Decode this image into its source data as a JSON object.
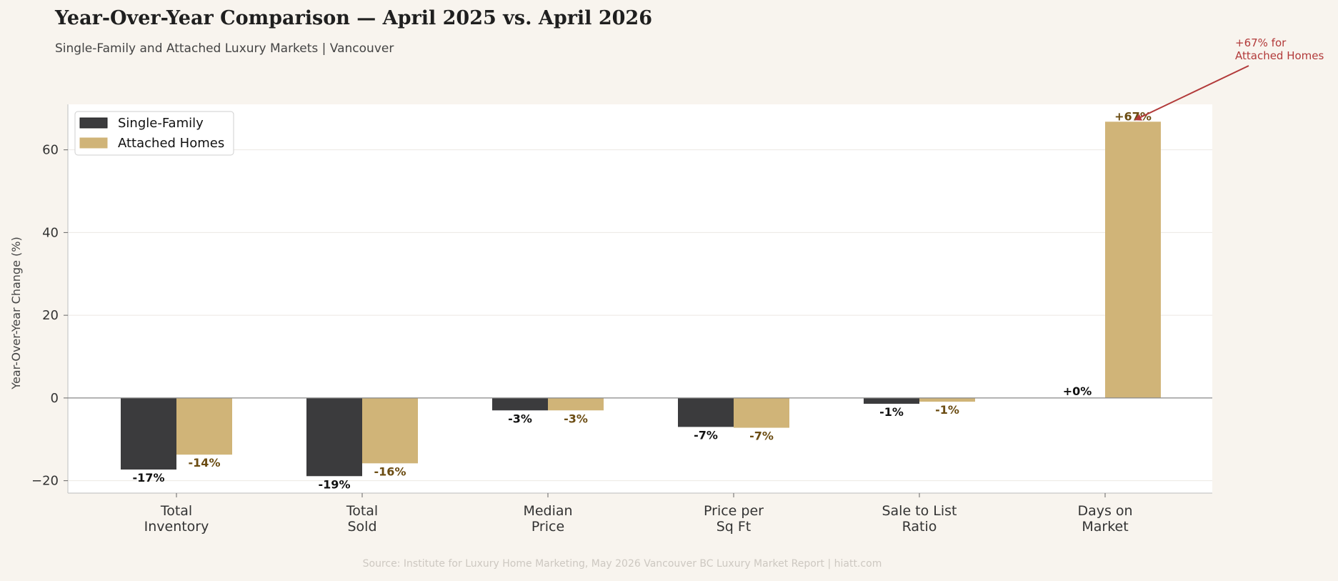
{
  "chart_data": {
    "type": "bar",
    "title": "Year-Over-Year Comparison — April 2025 vs. April 2026",
    "subtitle": "Single-Family and Attached Luxury Markets  |  Vancouver",
    "ylabel": "Year-Over-Year Change (%)",
    "xlabel": "",
    "ylim": [
      -23,
      71
    ],
    "yticks": [
      -20,
      0,
      20,
      40,
      60
    ],
    "ytick_labels": [
      "−20",
      "0",
      "20",
      "40",
      "60"
    ],
    "grid": true,
    "legend_position": "top-left",
    "categories": [
      [
        "Total",
        "Inventory"
      ],
      [
        "Total",
        "Sold"
      ],
      [
        "Median",
        "Price"
      ],
      [
        "Price per",
        "Sq Ft"
      ],
      [
        "Sale to List",
        "Ratio"
      ],
      [
        "Days on",
        "Market"
      ]
    ],
    "series": [
      {
        "name": "Single-Family",
        "color": "#3b3b3d",
        "label_color": "#111111",
        "values": [
          -17.3,
          -18.9,
          -3.0,
          -7.0,
          -1.4,
          0
        ],
        "labels": [
          "-17%",
          "-19%",
          "-3%",
          "-7%",
          "-1%",
          "+0%"
        ]
      },
      {
        "name": "Attached Homes",
        "color": "#d0b478",
        "label_color": "#6b4c12",
        "values": [
          -13.7,
          -15.8,
          -3.0,
          -7.2,
          -0.9,
          66.8
        ],
        "labels": [
          "-14%",
          "-16%",
          "-3%",
          "-7%",
          "-1%",
          "+67%"
        ]
      }
    ],
    "annotation": {
      "lines": [
        "+67% for",
        "Attached Homes"
      ],
      "color": "#b23a3a",
      "category_index": 5,
      "series_index": 1
    },
    "source": "Source: Institute for Luxury Home Marketing, May 2026 Vancouver BC Luxury Market Report  |  hiatt.com"
  }
}
